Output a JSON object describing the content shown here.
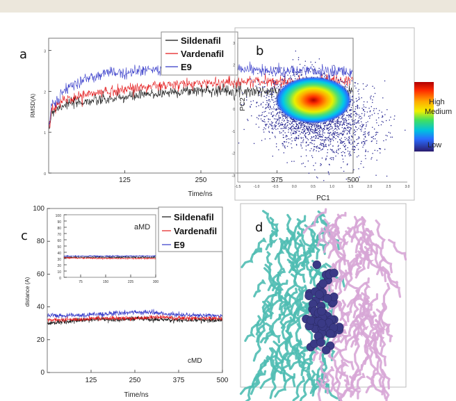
{
  "colors": {
    "sildenafil": "#111111",
    "vardenafil": "#e41a1c",
    "e9": "#3338c8",
    "protein_a": "#4fbcb3",
    "protein_b": "#d7a6d6",
    "ligand": "#3a3a86",
    "banner": "#ece7dc"
  },
  "chart_data": [
    {
      "panel_label": "a",
      "type": "line",
      "xlabel": "Time/ns",
      "ylabel": "RMSD(A)",
      "xlim": [
        0,
        500
      ],
      "ylim": [
        0,
        3.3
      ],
      "xticks": [
        125,
        250,
        375,
        500
      ],
      "yticks": [
        0,
        1,
        2,
        3
      ],
      "legend": [
        "Sildenafil",
        "Vardenafil",
        "E9"
      ],
      "legend_position": "top-right",
      "series": [
        {
          "name": "Sildenafil",
          "x": [
            0,
            5,
            25,
            60,
            100,
            150,
            200,
            250,
            300,
            350,
            400,
            450,
            500
          ],
          "y": [
            1.0,
            1.5,
            1.68,
            1.75,
            1.8,
            1.9,
            1.98,
            2.03,
            2.02,
            2.0,
            1.98,
            1.98,
            2.0
          ]
        },
        {
          "name": "Vardenafil",
          "x": [
            0,
            5,
            25,
            60,
            100,
            150,
            200,
            250,
            300,
            350,
            400,
            450,
            500
          ],
          "y": [
            1.0,
            1.55,
            1.78,
            1.92,
            2.0,
            2.1,
            2.15,
            2.2,
            2.22,
            2.25,
            2.22,
            2.25,
            2.28
          ]
        },
        {
          "name": "E9",
          "x": [
            0,
            5,
            25,
            60,
            100,
            150,
            200,
            250,
            300,
            350,
            400,
            450,
            500
          ],
          "y": [
            1.05,
            1.65,
            2.0,
            2.3,
            2.45,
            2.5,
            2.55,
            2.62,
            2.6,
            2.5,
            2.48,
            2.5,
            2.45
          ]
        }
      ]
    },
    {
      "panel_label": "b",
      "type": "scatter",
      "xlabel": "PC1",
      "ylabel": "PC2",
      "xlim": [
        -1.5,
        3.0
      ],
      "ylim": [
        -3.3,
        3.0
      ],
      "xticks": [
        -1.5,
        -1.0,
        -0.5,
        0.0,
        0.5,
        1.0,
        1.5,
        2.0,
        2.5,
        3.0
      ],
      "xtick_labels": [
        "-1.5",
        "-1.0",
        "-0.5",
        "0.0",
        "0.5",
        "1.0",
        "1.5",
        "2.0",
        "2.5",
        "3.0"
      ],
      "yticks": [
        -3,
        -2,
        -1,
        0,
        1,
        2,
        3
      ],
      "yticks_labels": [
        "-3",
        "-2",
        "-1",
        "0",
        "1",
        "2",
        "3"
      ],
      "density_center": [
        0.3,
        0.0
      ],
      "colorbar": {
        "labels": [
          "High",
          "Medium",
          "Low"
        ]
      }
    },
    {
      "panel_label": "c",
      "type": "line",
      "xlabel": "Time/ns",
      "ylabel": "distance (A)",
      "xlim": [
        0,
        500
      ],
      "ylim": [
        0,
        100
      ],
      "xticks": [
        125,
        250,
        375,
        500
      ],
      "yticks": [
        0,
        20,
        40,
        60,
        80,
        100
      ],
      "legend": [
        "Sildenafil",
        "Vardenafil",
        "E9"
      ],
      "legend_position": "top-right",
      "corner_label": "cMD",
      "series": [
        {
          "name": "Sildenafil",
          "x": [
            0,
            50,
            100,
            150,
            200,
            250,
            300,
            350,
            400,
            450,
            500
          ],
          "y": [
            30,
            31,
            32,
            32.5,
            32,
            33,
            32.5,
            32,
            32,
            32,
            32
          ]
        },
        {
          "name": "Vardenafil",
          "x": [
            0,
            50,
            100,
            150,
            200,
            250,
            300,
            350,
            400,
            450,
            500
          ],
          "y": [
            32,
            32,
            32.5,
            33,
            33,
            33,
            34,
            33.5,
            33,
            33,
            33
          ]
        },
        {
          "name": "E9",
          "x": [
            0,
            50,
            100,
            150,
            200,
            250,
            300,
            350,
            400,
            450,
            500
          ],
          "y": [
            35,
            34.5,
            35,
            35.5,
            36,
            37,
            36.5,
            35.5,
            35,
            35,
            34.5
          ]
        }
      ],
      "inset": {
        "label": "aMD",
        "xlim": [
          25,
          300
        ],
        "ylim": [
          0,
          100
        ],
        "xticks": [
          75,
          150,
          225,
          300
        ],
        "yticks": [
          0,
          10,
          20,
          30,
          40,
          50,
          60,
          70,
          80,
          90,
          100
        ],
        "series": [
          {
            "name": "Sildenafil",
            "x": [
              25,
              100,
              200,
              300
            ],
            "y": [
              32,
              32,
              32,
              32
            ]
          },
          {
            "name": "Vardenafil",
            "x": [
              25,
              100,
              200,
              300
            ],
            "y": [
              31,
              30.5,
              30,
              30
            ]
          },
          {
            "name": "E9",
            "x": [
              25,
              100,
              200,
              300
            ],
            "y": [
              34,
              34,
              34,
              34
            ]
          }
        ]
      }
    },
    {
      "panel_label": "d",
      "type": "other"
    }
  ]
}
